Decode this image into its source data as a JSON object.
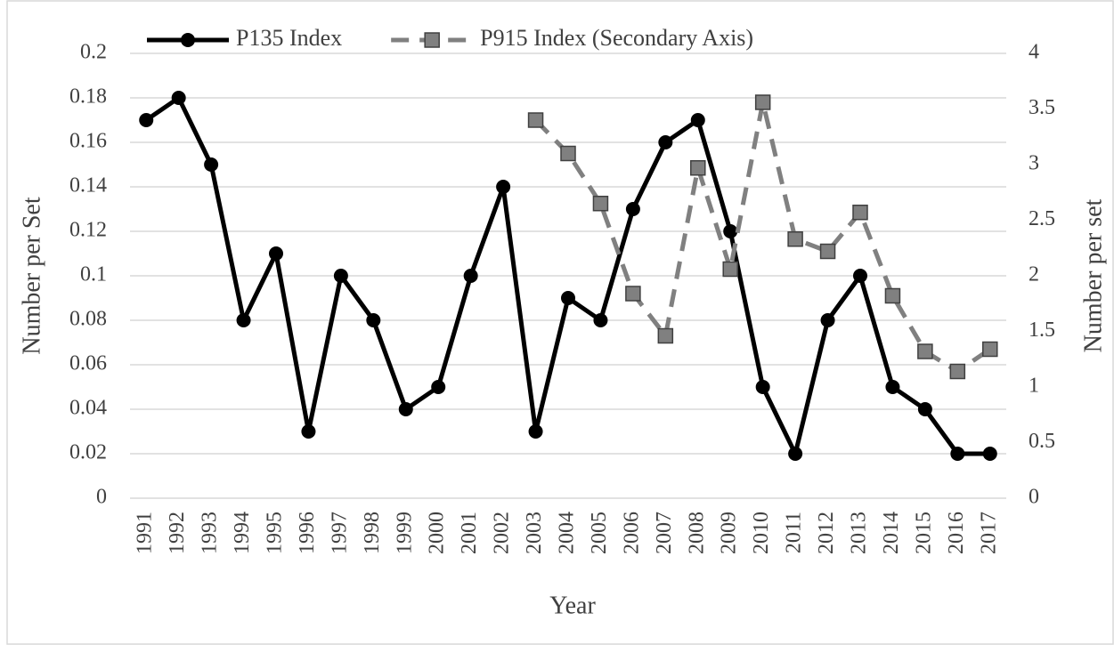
{
  "chart_data": {
    "type": "line",
    "x_label": "Year",
    "y_label": "Number per Set",
    "y2_label": "Number per set",
    "categories": [
      "1991",
      "1992",
      "1993",
      "1994",
      "1995",
      "1996",
      "1997",
      "1998",
      "1999",
      "2000",
      "2001",
      "2002",
      "2003",
      "2004",
      "2005",
      "2006",
      "2007",
      "2008",
      "2009",
      "2010",
      "2011",
      "2012",
      "2013",
      "2014",
      "2015",
      "2016",
      "2017"
    ],
    "series": [
      {
        "name": "P135 Index",
        "color": "#000000",
        "marker": "circle",
        "dash": false,
        "values": [
          0.17,
          0.18,
          0.15,
          0.08,
          0.11,
          0.03,
          0.1,
          0.08,
          0.04,
          0.05,
          0.1,
          0.14,
          0.03,
          0.09,
          0.08,
          0.13,
          0.16,
          0.17,
          0.12,
          0.05,
          0.02,
          0.08,
          0.1,
          0.05,
          0.04,
          0.02,
          0.02
        ]
      },
      {
        "name": "P915 Index (Secondary Axis)",
        "color": "#808080",
        "marker": "square",
        "dash": true,
        "axis": "y2",
        "values": [
          null,
          null,
          null,
          null,
          null,
          null,
          null,
          null,
          null,
          null,
          null,
          null,
          3.4,
          3.1,
          2.65,
          1.84,
          1.46,
          2.97,
          2.06,
          3.56,
          2.33,
          2.22,
          2.57,
          1.82,
          1.32,
          1.14,
          1.34
        ]
      }
    ],
    "ylim": [
      0,
      0.2
    ],
    "yticks": [
      0,
      0.02,
      0.04,
      0.06,
      0.08,
      0.1,
      0.12,
      0.14,
      0.16,
      0.18,
      0.2
    ],
    "y2lim": [
      0,
      4
    ],
    "y2ticks": [
      0,
      0.5,
      1,
      1.5,
      2,
      2.5,
      3,
      3.5,
      4
    ],
    "grid": true,
    "legend": "top"
  }
}
